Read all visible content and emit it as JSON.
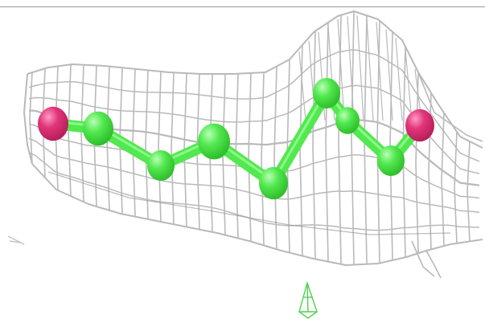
{
  "scene": {
    "background_color": "#ffffff",
    "mesh_color": "#b9b9b9",
    "mesh_dark_color": "#8c8c8c",
    "molecule_color": "#52e84f",
    "molecule_shade": "#2fbf2c",
    "terminal_atom_color": "#e0357a",
    "terminal_atom_shade": "#b81f5c",
    "marker_color": "#4fd24f",
    "representation": "electron-density-mesh",
    "molecule_style": "ball-and-stick",
    "atoms": [
      {
        "element": "O",
        "color_key": "terminal"
      },
      {
        "element": "C",
        "color_key": "carbon"
      },
      {
        "element": "C",
        "color_key": "carbon"
      },
      {
        "element": "C",
        "color_key": "carbon"
      },
      {
        "element": "C",
        "color_key": "carbon"
      },
      {
        "element": "C",
        "color_key": "carbon"
      },
      {
        "element": "C",
        "color_key": "carbon"
      },
      {
        "element": "C",
        "color_key": "carbon"
      },
      {
        "element": "O",
        "color_key": "terminal"
      }
    ]
  }
}
